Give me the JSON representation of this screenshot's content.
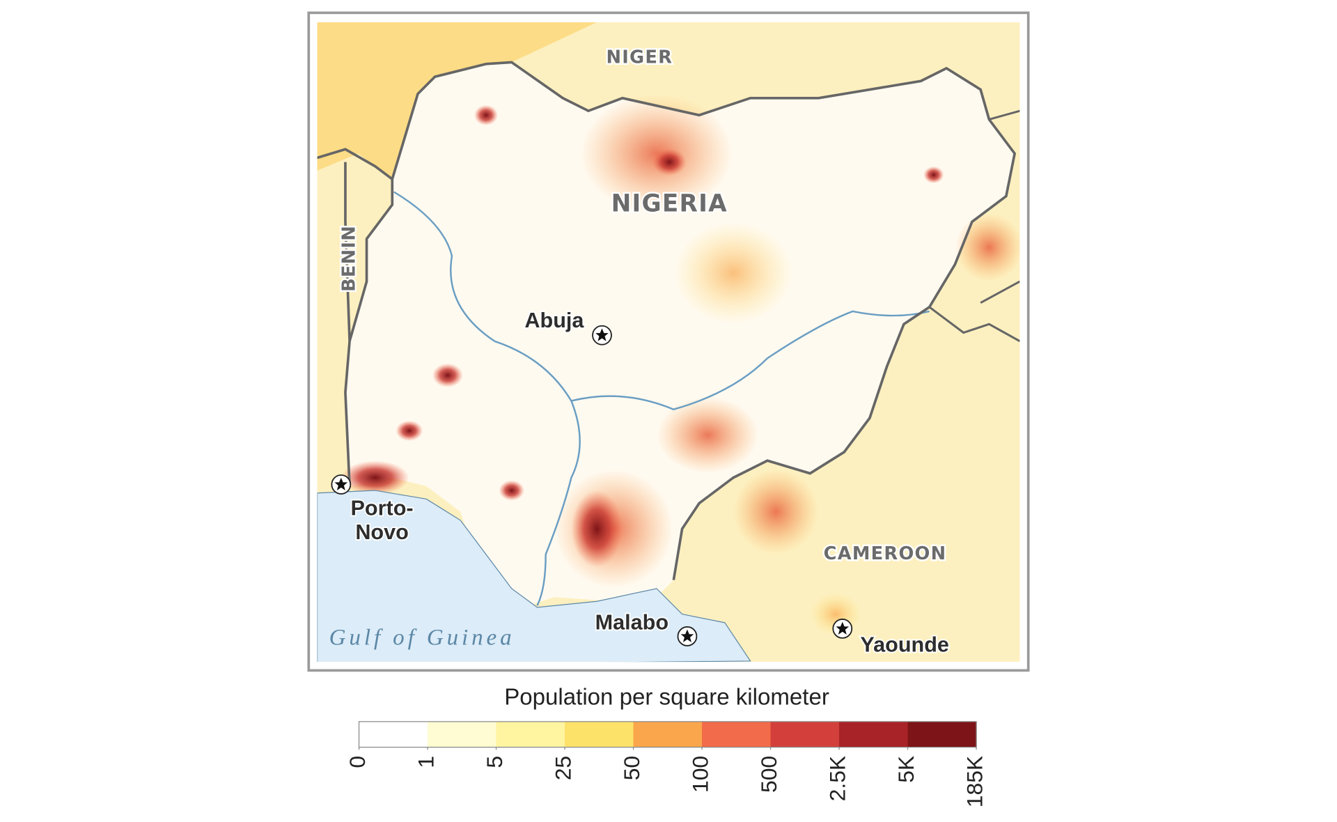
{
  "map": {
    "regions": [
      "NIGER",
      "NIGERIA",
      "BENIN",
      "CAMEROON"
    ],
    "water": "Gulf of Guinea",
    "cities": [
      {
        "lines": [
          "Abuja"
        ]
      },
      {
        "lines": [
          "Porto-",
          "Novo"
        ]
      },
      {
        "lines": [
          "Malabo"
        ]
      },
      {
        "lines": [
          "Yaounde"
        ]
      }
    ]
  },
  "legend": {
    "title": "Population per square kilometer",
    "ticks": [
      0,
      1,
      5,
      25,
      50,
      100,
      500,
      {
        "value": 2500,
        "label": "2.5K"
      },
      {
        "value": 5000,
        "label": "5K"
      },
      {
        "value": 185000,
        "label": "185K"
      }
    ],
    "colors": [
      "#ffffff",
      "#fffbd2",
      "#fff4a0",
      "#fde26a",
      "#f9a64c",
      "#f26b4a",
      "#d3403b",
      "#a82327",
      "#7d1417"
    ]
  }
}
